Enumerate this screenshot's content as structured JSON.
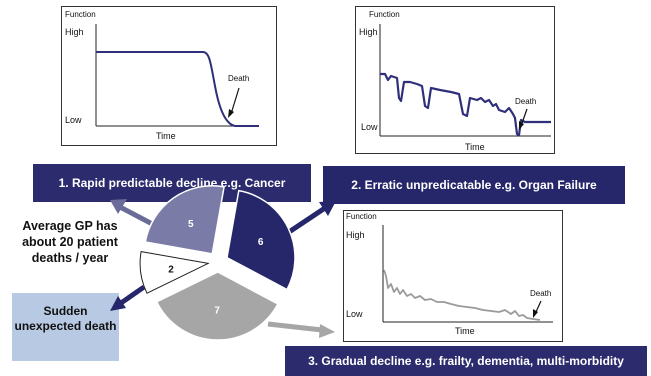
{
  "graphs": {
    "rapid": {
      "y_label": "Function",
      "high": "High",
      "low": "Low",
      "x_label": "Time",
      "death": "Death"
    },
    "erratic": {
      "y_label": "Function",
      "high": "High",
      "low": "Low",
      "x_label": "Time",
      "death": "Death"
    },
    "gradual": {
      "y_label": "Function",
      "high": "High",
      "low": "Low",
      "x_label": "Time",
      "death": "Death"
    }
  },
  "banners": {
    "rapid": "1. Rapid predictable decline e.g. Cancer",
    "erratic": "2. Erratic unpredicatable  e.g. Organ Failure",
    "gradual": "3. Gradual decline e.g.  frailty, dementia, multi-morbidity"
  },
  "gp_text": "Average GP has about 20 patient deaths / year",
  "sudden_text": "Sudden unexpected death",
  "pie": {
    "slices": [
      {
        "value": 5,
        "color": "#7b7ba8"
      },
      {
        "value": 6,
        "color": "#26266b"
      },
      {
        "value": 2,
        "color": "#ffffff"
      },
      {
        "value": 7,
        "color": "#a6a6a6"
      }
    ]
  },
  "colors": {
    "banner": "#2b2b6e",
    "sudden_box": "#b7c9e3",
    "curve": "#30307a",
    "gradual_curve": "#9a9a9a"
  }
}
